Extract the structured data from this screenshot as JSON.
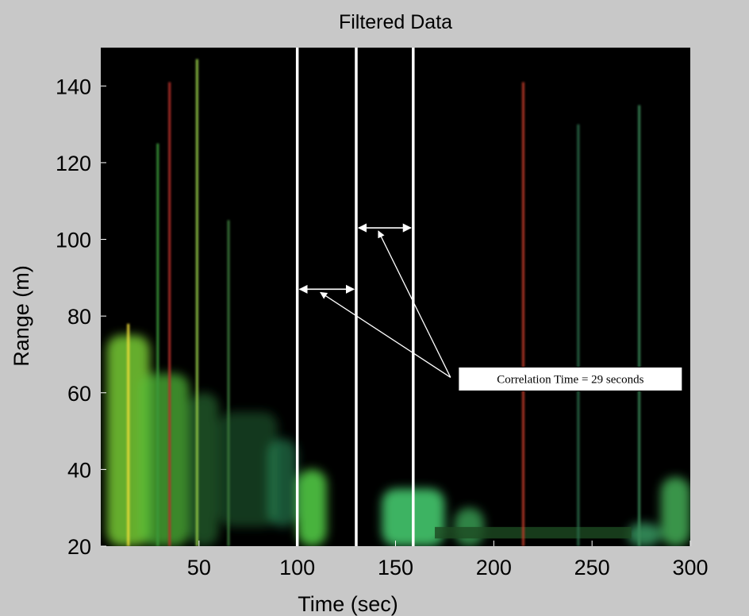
{
  "chart_data": {
    "type": "heatmap",
    "title": "Filtered Data",
    "xlabel": "Time (sec)",
    "ylabel": "Range (m)",
    "xlim": [
      0,
      300
    ],
    "ylim": [
      20,
      150
    ],
    "xticks": [
      50,
      100,
      150,
      200,
      250,
      300
    ],
    "yticks": [
      20,
      40,
      60,
      80,
      100,
      120,
      140
    ],
    "xtick_labels": [
      "50",
      "100",
      "150",
      "200",
      "250",
      "300"
    ],
    "ytick_labels": [
      "20",
      "40",
      "60",
      "80",
      "100",
      "120",
      "140"
    ],
    "colormap": "jet-like on black background",
    "background_color": "#000000",
    "grid": false,
    "vertical_markers": [
      {
        "x": 100
      },
      {
        "x": 130
      },
      {
        "x": 159
      }
    ],
    "intervals": [
      {
        "x_start": 100,
        "x_end": 130,
        "y": 87
      },
      {
        "x_start": 130,
        "x_end": 159,
        "y": 103
      }
    ],
    "annotation": {
      "text": "Correlation Time = 29 seconds",
      "anchor": [
        178,
        64
      ]
    },
    "intensity_regions": [
      {
        "x": [
          3,
          25
        ],
        "y": [
          20,
          75
        ],
        "level": 0.8,
        "color": "#7ed83a"
      },
      {
        "x": [
          20,
          45
        ],
        "y": [
          20,
          65
        ],
        "level": 0.7,
        "color": "#56c23c"
      },
      {
        "x": [
          45,
          60
        ],
        "y": [
          20,
          60
        ],
        "level": 0.45,
        "color": "#3aa04a"
      },
      {
        "x": [
          60,
          90
        ],
        "y": [
          25,
          55
        ],
        "level": 0.4,
        "color": "#2e8c4c"
      },
      {
        "x": [
          85,
          100
        ],
        "y": [
          25,
          48
        ],
        "level": 0.5,
        "color": "#2fa36a"
      },
      {
        "x": [
          100,
          115
        ],
        "y": [
          20,
          40
        ],
        "level": 0.8,
        "color": "#5be04c"
      },
      {
        "x": [
          143,
          175
        ],
        "y": [
          20,
          35
        ],
        "level": 0.8,
        "color": "#4ee07a"
      },
      {
        "x": [
          180,
          195
        ],
        "y": [
          20,
          30
        ],
        "level": 0.65,
        "color": "#49c96a"
      },
      {
        "x": [
          268,
          285
        ],
        "y": [
          20,
          26
        ],
        "level": 0.6,
        "color": "#4fd88a"
      },
      {
        "x": [
          285,
          300
        ],
        "y": [
          20,
          38
        ],
        "level": 0.7,
        "color": "#53d36a"
      }
    ],
    "streaks": [
      {
        "x": 14,
        "y_top": 78,
        "color": "#f5e23a"
      },
      {
        "x": 29,
        "y_top": 125,
        "color": "#3a9a3a"
      },
      {
        "x": 35,
        "y_top": 141,
        "color": "#b8302a"
      },
      {
        "x": 49,
        "y_top": 147,
        "color": "#9ad04a"
      },
      {
        "x": 65,
        "y_top": 105,
        "color": "#3a7a3a"
      },
      {
        "x": 215,
        "y_top": 141,
        "color": "#c03a2a"
      },
      {
        "x": 243,
        "y_top": 130,
        "color": "#2a6a4a"
      },
      {
        "x": 274,
        "y_top": 135,
        "color": "#3a8a5a"
      }
    ]
  }
}
